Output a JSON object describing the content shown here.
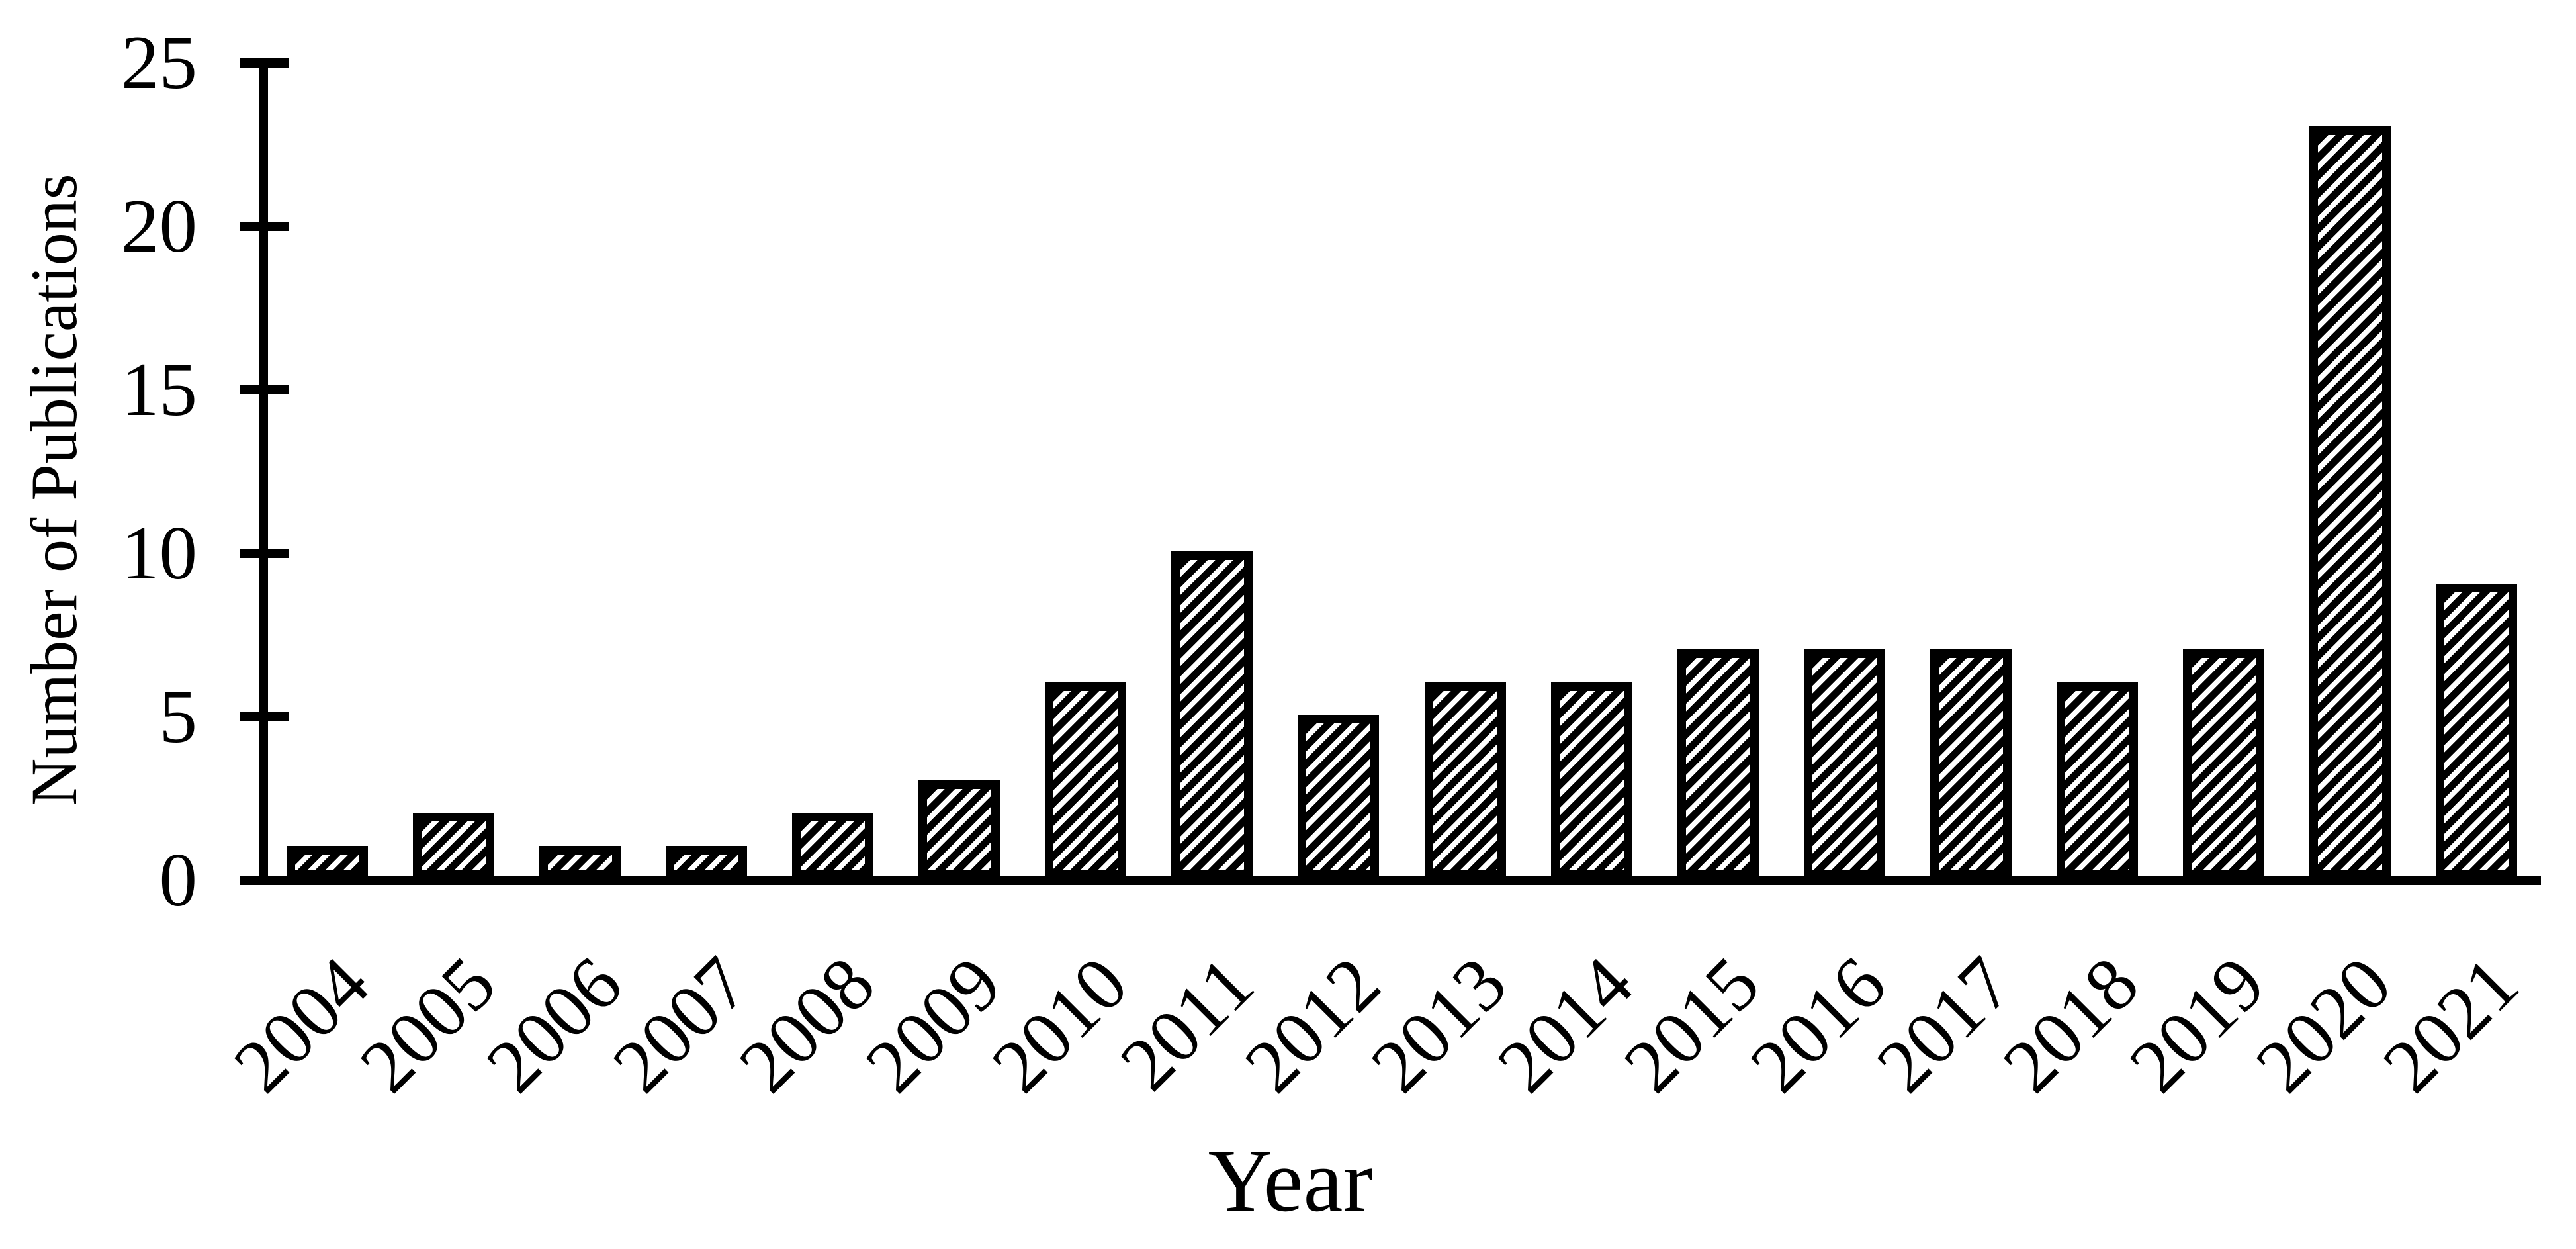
{
  "figure": {
    "background_color": "#ffffff",
    "ink_color": "#000000"
  },
  "chart_data": {
    "type": "bar",
    "title": "",
    "xlabel": "Year",
    "ylabel": "Number of Publications",
    "categories": [
      "2004",
      "2005",
      "2006",
      "2007",
      "2008",
      "2009",
      "2010",
      "2011",
      "2012",
      "2013",
      "2014",
      "2015",
      "2016",
      "2017",
      "2018",
      "2019",
      "2020",
      "2021"
    ],
    "values": [
      1,
      2,
      1,
      1,
      2,
      3,
      6,
      10,
      5,
      6,
      6,
      7,
      7,
      7,
      6,
      7,
      23,
      9
    ],
    "ylim": [
      0,
      25
    ],
    "yticks": [
      0,
      5,
      10,
      15,
      20,
      25
    ],
    "grid": false,
    "legend": null,
    "bar_style": {
      "fill": "diagonal-hatch-forward-slash",
      "stroke": "#000000",
      "hatch_color": "#000000",
      "background": "#ffffff"
    },
    "x_tick_rotation_deg": 45
  }
}
